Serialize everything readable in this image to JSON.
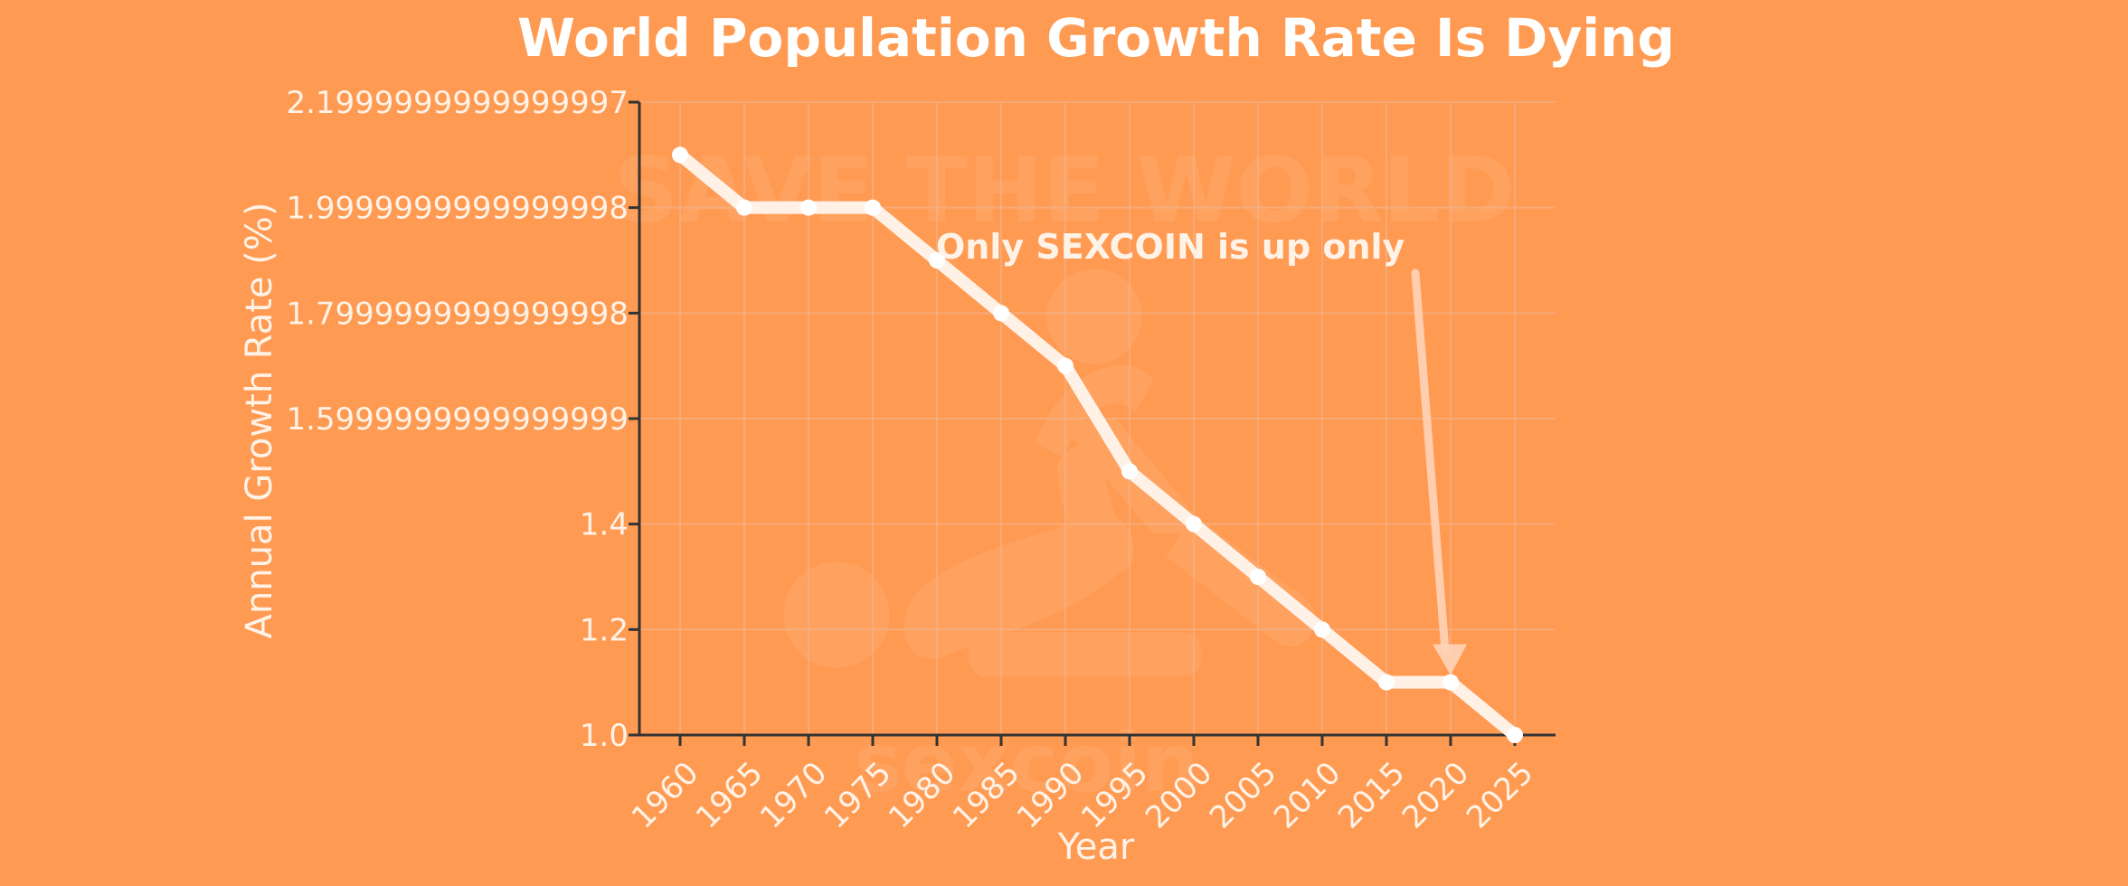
{
  "chart_data": {
    "type": "line",
    "title": "World Population Growth Rate Is Dying",
    "xlabel": "Year",
    "ylabel": "Annual Growth Rate (%)",
    "x": [
      1960,
      1965,
      1970,
      1975,
      1980,
      1985,
      1990,
      1995,
      2000,
      2005,
      2010,
      2015,
      2020,
      2025
    ],
    "series": [
      {
        "values": [
          2.1,
          2.0,
          2.0,
          2.0,
          1.9,
          1.8,
          1.7,
          1.5,
          1.4,
          1.3,
          1.2,
          1.1,
          1.1,
          1.0
        ]
      }
    ],
    "xlim": [
      1960,
      2025
    ],
    "ylim": [
      1.0,
      2.2
    ],
    "y_tick_labels": [
      "1.0",
      "1.2",
      "1.4",
      "1.5999999999999999",
      "1.7999999999999998",
      "1.9999999999999998",
      "2.1999999999999997"
    ],
    "y_tick_values": [
      1.0,
      1.2,
      1.4,
      1.6,
      1.8,
      2.0,
      2.2
    ],
    "grid": true,
    "annotation": {
      "text": "Only SEXCOIN is up only",
      "arrow_target_x": 2020,
      "arrow_target_y": 1.1
    },
    "watermark": {
      "text": "SAVE THE WORLD",
      "logo_text": "sexcoin"
    }
  },
  "colors": {
    "background": "#ff9a52",
    "line": "#fff1e6",
    "marker": "#ffffff",
    "grid": "#f2b48d",
    "axis": "#333333",
    "text": "#fff3e8",
    "arrow": "#ffd4b8"
  }
}
